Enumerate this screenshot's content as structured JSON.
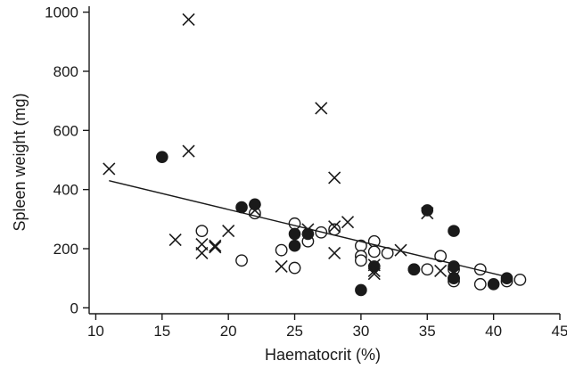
{
  "chart_data": {
    "type": "scatter",
    "xlabel": "Haematocrit (%)",
    "ylabel": "Spleen weight (mg)",
    "xlim": [
      9.5,
      45
    ],
    "ylim": [
      -20,
      1020
    ],
    "xticks": [
      10,
      15,
      20,
      25,
      30,
      35,
      40,
      45
    ],
    "yticks": [
      0,
      200,
      400,
      600,
      800,
      1000
    ],
    "grid": false,
    "series": [
      {
        "marker": "open-circle",
        "points": [
          [
            18,
            260
          ],
          [
            21,
            160
          ],
          [
            22,
            320
          ],
          [
            25,
            285
          ],
          [
            25,
            135
          ],
          [
            24,
            195
          ],
          [
            26,
            225
          ],
          [
            27,
            255
          ],
          [
            28,
            265
          ],
          [
            30,
            210
          ],
          [
            30,
            175
          ],
          [
            30,
            160
          ],
          [
            31,
            225
          ],
          [
            31,
            190
          ],
          [
            32,
            185
          ],
          [
            34,
            130
          ],
          [
            35,
            130
          ],
          [
            36,
            175
          ],
          [
            37,
            130
          ],
          [
            37,
            100
          ],
          [
            37,
            90
          ],
          [
            39,
            130
          ],
          [
            39,
            80
          ],
          [
            41,
            90
          ],
          [
            42,
            95
          ]
        ]
      },
      {
        "marker": "filled-circle",
        "points": [
          [
            15,
            510
          ],
          [
            21,
            340
          ],
          [
            22,
            350
          ],
          [
            25,
            250
          ],
          [
            25,
            210
          ],
          [
            26,
            250
          ],
          [
            30,
            60
          ],
          [
            31,
            140
          ],
          [
            34,
            130
          ],
          [
            35,
            330
          ],
          [
            37,
            260
          ],
          [
            37,
            140
          ],
          [
            37,
            100
          ],
          [
            40,
            80
          ],
          [
            41,
            100
          ]
        ]
      },
      {
        "marker": "cross",
        "points": [
          [
            11,
            470
          ],
          [
            16,
            230
          ],
          [
            17,
            975
          ],
          [
            17,
            530
          ],
          [
            18,
            215
          ],
          [
            18,
            185
          ],
          [
            19,
            210
          ],
          [
            19,
            205
          ],
          [
            20,
            260
          ],
          [
            22,
            330
          ],
          [
            24,
            140
          ],
          [
            26,
            265
          ],
          [
            27,
            675
          ],
          [
            28,
            440
          ],
          [
            28,
            275
          ],
          [
            28,
            185
          ],
          [
            29,
            290
          ],
          [
            31,
            145
          ],
          [
            31,
            125
          ],
          [
            31,
            115
          ],
          [
            33,
            195
          ],
          [
            35,
            320
          ],
          [
            36,
            125
          ]
        ]
      }
    ],
    "trendline": {
      "x": [
        11,
        41
      ],
      "y": [
        430,
        105
      ]
    }
  }
}
